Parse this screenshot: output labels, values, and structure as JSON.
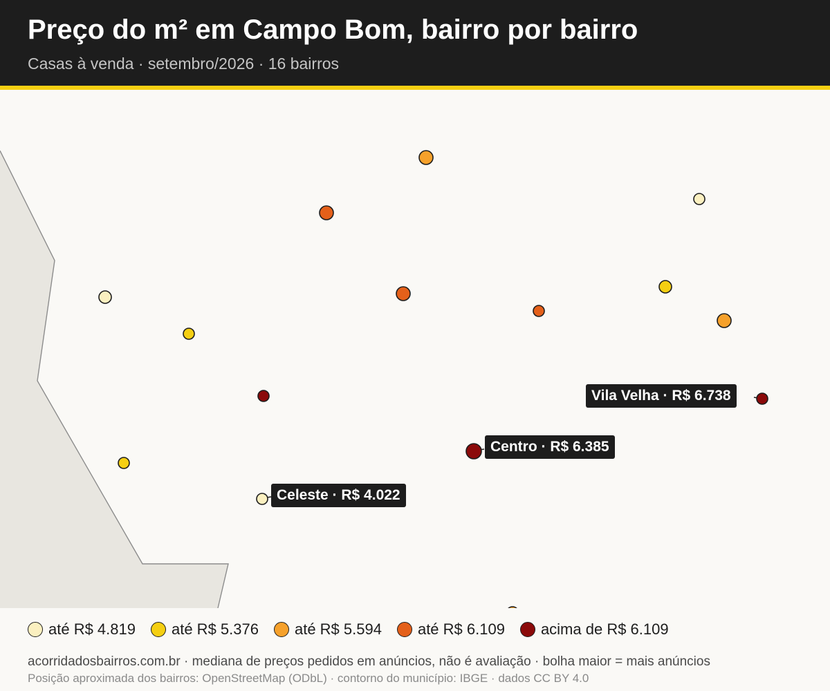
{
  "header": {
    "title": "Preço do m² em Campo Bom, bairro por bairro",
    "subtitle": "Casas à venda · setembro/2026 · 16 bairros"
  },
  "colors": {
    "header_bg": "#1d1d1d",
    "accent_rule": "#f5cf12",
    "map_bg": "#faf9f6",
    "outside_area": "#e8e6e0",
    "boundary": "#8c8c8c",
    "classes": [
      "#fbf0c0",
      "#f5cf12",
      "#f6a12b",
      "#e4601a",
      "#8b0a0a"
    ]
  },
  "legend": {
    "items": [
      {
        "label": "até R$ 4.819",
        "color": "#fbf0c0"
      },
      {
        "label": "até R$ 5.376",
        "color": "#f5cf12"
      },
      {
        "label": "até R$ 5.594",
        "color": "#f6a12b"
      },
      {
        "label": "até R$ 6.109",
        "color": "#e4601a"
      },
      {
        "label": "acima de R$ 6.109",
        "color": "#8b0a0a"
      }
    ]
  },
  "callouts": {
    "vila_velha": "Vila Velha · R$ 6.738",
    "centro": "Centro · R$ 6.385",
    "celeste": "Celeste · R$ 4.022"
  },
  "footer": {
    "main": "acorridadosbairros.com.br · mediana de preços pedidos em anúncios, não é avaliação · bolha maior = mais anúncios",
    "source": "Posição aproximada dos bairros: OpenStreetMap (ODbL) · contorno do município: IBGE · dados CC BY 4.0"
  }
}
